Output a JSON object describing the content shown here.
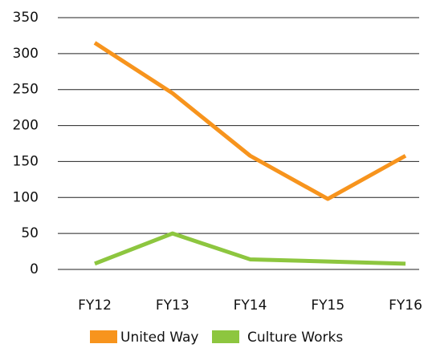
{
  "chart_data": {
    "type": "line",
    "categories": [
      "FY12",
      "FY13",
      "FY14",
      "FY15",
      "FY16"
    ],
    "series": [
      {
        "name": "United Way",
        "color": "#f7941d",
        "values": [
          315,
          245,
          158,
          98,
          158
        ]
      },
      {
        "name": "Culture Works",
        "color": "#8dc63f",
        "values": [
          8,
          50,
          14,
          11,
          8
        ]
      }
    ],
    "ylim": [
      0,
      350
    ],
    "yticks": [
      0,
      50,
      100,
      150,
      200,
      250,
      300,
      350
    ],
    "grid": true
  }
}
